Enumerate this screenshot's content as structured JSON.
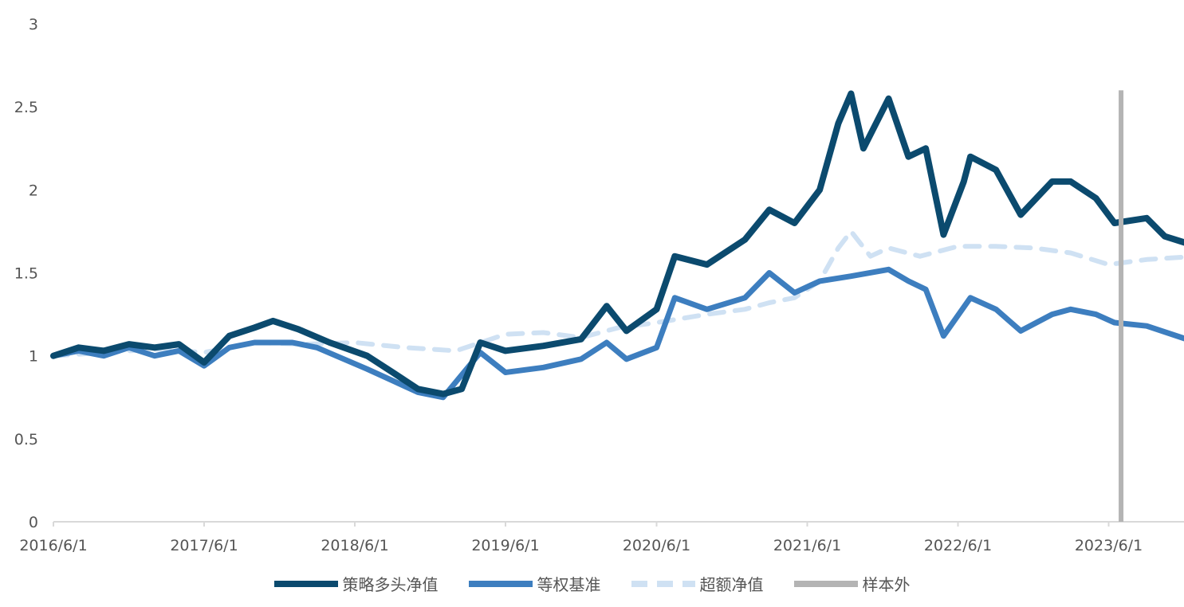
{
  "chart_data": {
    "type": "line",
    "title": "",
    "xlabel": "",
    "ylabel": "",
    "ylim": [
      0,
      3
    ],
    "yticks": [
      "0",
      "0.5",
      "1",
      "1.5",
      "2",
      "2.5",
      "3"
    ],
    "x_start": "2016/6/1",
    "x_end": "2023/12/31",
    "xticks": [
      "2016/6/1",
      "2017/6/1",
      "2018/6/1",
      "2019/6/1",
      "2020/6/1",
      "2021/6/1",
      "2022/6/1",
      "2023/6/1"
    ],
    "grid": false,
    "legend_position": "bottom",
    "colors": {
      "strategy": "#0b4a6e",
      "benchmark": "#3d7ebf",
      "excess": "#cfe1f3",
      "oos": "#b4b4b4"
    },
    "series": [
      {
        "name": "策略多头净值",
        "style": "solid",
        "points": [
          [
            "2016/6/1",
            1.0
          ],
          [
            "2016/8/1",
            1.05
          ],
          [
            "2016/10/1",
            1.03
          ],
          [
            "2016/12/1",
            1.07
          ],
          [
            "2017/2/1",
            1.05
          ],
          [
            "2017/4/1",
            1.07
          ],
          [
            "2017/6/1",
            0.96
          ],
          [
            "2017/8/1",
            1.12
          ],
          [
            "2017/10/1",
            1.17
          ],
          [
            "2017/11/15",
            1.21
          ],
          [
            "2018/1/15",
            1.16
          ],
          [
            "2018/4/1",
            1.08
          ],
          [
            "2018/7/1",
            1.0
          ],
          [
            "2018/9/1",
            0.9
          ],
          [
            "2018/11/1",
            0.8
          ],
          [
            "2019/1/1",
            0.77
          ],
          [
            "2019/2/15",
            0.8
          ],
          [
            "2019/4/1",
            1.08
          ],
          [
            "2019/6/1",
            1.03
          ],
          [
            "2019/9/1",
            1.06
          ],
          [
            "2019/12/1",
            1.1
          ],
          [
            "2020/2/1",
            1.3
          ],
          [
            "2020/3/20",
            1.15
          ],
          [
            "2020/6/1",
            1.28
          ],
          [
            "2020/7/15",
            1.6
          ],
          [
            "2020/10/1",
            1.55
          ],
          [
            "2021/1/1",
            1.7
          ],
          [
            "2021/3/1",
            1.88
          ],
          [
            "2021/5/1",
            1.8
          ],
          [
            "2021/7/1",
            2.0
          ],
          [
            "2021/8/15",
            2.4
          ],
          [
            "2021/9/15",
            2.58
          ],
          [
            "2021/10/15",
            2.25
          ],
          [
            "2021/12/15",
            2.55
          ],
          [
            "2022/2/1",
            2.2
          ],
          [
            "2022/3/15",
            2.25
          ],
          [
            "2022/4/27",
            1.73
          ],
          [
            "2022/6/15",
            2.05
          ],
          [
            "2022/7/1",
            2.2
          ],
          [
            "2022/9/1",
            2.12
          ],
          [
            "2022/10/31",
            1.85
          ],
          [
            "2023/1/15",
            2.05
          ],
          [
            "2023/3/1",
            2.05
          ],
          [
            "2023/5/1",
            1.95
          ],
          [
            "2023/6/15",
            1.8
          ],
          [
            "2023/9/1",
            1.83
          ],
          [
            "2023/10/15",
            1.72
          ],
          [
            "2023/12/31",
            1.66
          ]
        ]
      },
      {
        "name": "等权基准",
        "style": "solid",
        "points": [
          [
            "2016/6/1",
            1.0
          ],
          [
            "2016/8/1",
            1.03
          ],
          [
            "2016/10/1",
            1.0
          ],
          [
            "2016/12/1",
            1.05
          ],
          [
            "2017/2/1",
            1.0
          ],
          [
            "2017/4/1",
            1.03
          ],
          [
            "2017/6/1",
            0.94
          ],
          [
            "2017/8/1",
            1.05
          ],
          [
            "2017/10/1",
            1.08
          ],
          [
            "2018/1/1",
            1.08
          ],
          [
            "2018/3/1",
            1.05
          ],
          [
            "2018/7/1",
            0.92
          ],
          [
            "2018/9/1",
            0.85
          ],
          [
            "2018/11/1",
            0.78
          ],
          [
            "2019/1/1",
            0.75
          ],
          [
            "2019/4/1",
            1.02
          ],
          [
            "2019/6/1",
            0.9
          ],
          [
            "2019/9/1",
            0.93
          ],
          [
            "2019/12/1",
            0.98
          ],
          [
            "2020/2/1",
            1.08
          ],
          [
            "2020/3/20",
            0.98
          ],
          [
            "2020/6/1",
            1.05
          ],
          [
            "2020/7/15",
            1.35
          ],
          [
            "2020/10/1",
            1.28
          ],
          [
            "2021/1/1",
            1.35
          ],
          [
            "2021/3/1",
            1.5
          ],
          [
            "2021/5/1",
            1.38
          ],
          [
            "2021/7/1",
            1.45
          ],
          [
            "2021/9/15",
            1.48
          ],
          [
            "2021/12/15",
            1.52
          ],
          [
            "2022/2/1",
            1.45
          ],
          [
            "2022/3/15",
            1.4
          ],
          [
            "2022/4/27",
            1.12
          ],
          [
            "2022/7/1",
            1.35
          ],
          [
            "2022/9/1",
            1.28
          ],
          [
            "2022/10/31",
            1.15
          ],
          [
            "2023/1/15",
            1.25
          ],
          [
            "2023/3/1",
            1.28
          ],
          [
            "2023/5/1",
            1.25
          ],
          [
            "2023/6/15",
            1.2
          ],
          [
            "2023/9/1",
            1.18
          ],
          [
            "2023/12/31",
            1.08
          ]
        ]
      },
      {
        "name": "超额净值",
        "style": "dashed",
        "points": [
          [
            "2016/6/1",
            1.0
          ],
          [
            "2016/10/1",
            1.02
          ],
          [
            "2017/2/1",
            1.04
          ],
          [
            "2017/6/1",
            1.02
          ],
          [
            "2017/10/1",
            1.08
          ],
          [
            "2018/2/1",
            1.07
          ],
          [
            "2018/6/1",
            1.08
          ],
          [
            "2018/10/1",
            1.05
          ],
          [
            "2019/2/1",
            1.03
          ],
          [
            "2019/6/1",
            1.13
          ],
          [
            "2019/9/1",
            1.14
          ],
          [
            "2019/12/1",
            1.11
          ],
          [
            "2020/3/1",
            1.17
          ],
          [
            "2020/6/1",
            1.2
          ],
          [
            "2020/10/1",
            1.25
          ],
          [
            "2021/1/1",
            1.28
          ],
          [
            "2021/3/1",
            1.32
          ],
          [
            "2021/5/1",
            1.35
          ],
          [
            "2021/7/1",
            1.45
          ],
          [
            "2021/8/15",
            1.65
          ],
          [
            "2021/9/15",
            1.75
          ],
          [
            "2021/11/1",
            1.6
          ],
          [
            "2021/12/15",
            1.65
          ],
          [
            "2022/3/1",
            1.6
          ],
          [
            "2022/6/1",
            1.66
          ],
          [
            "2022/9/1",
            1.66
          ],
          [
            "2022/12/1",
            1.65
          ],
          [
            "2023/3/1",
            1.62
          ],
          [
            "2023/6/1",
            1.55
          ],
          [
            "2023/9/1",
            1.58
          ],
          [
            "2023/12/31",
            1.6
          ]
        ]
      }
    ],
    "out_of_sample": {
      "name": "样本外",
      "x": "2023/7/1",
      "y_top": 2.6
    }
  }
}
